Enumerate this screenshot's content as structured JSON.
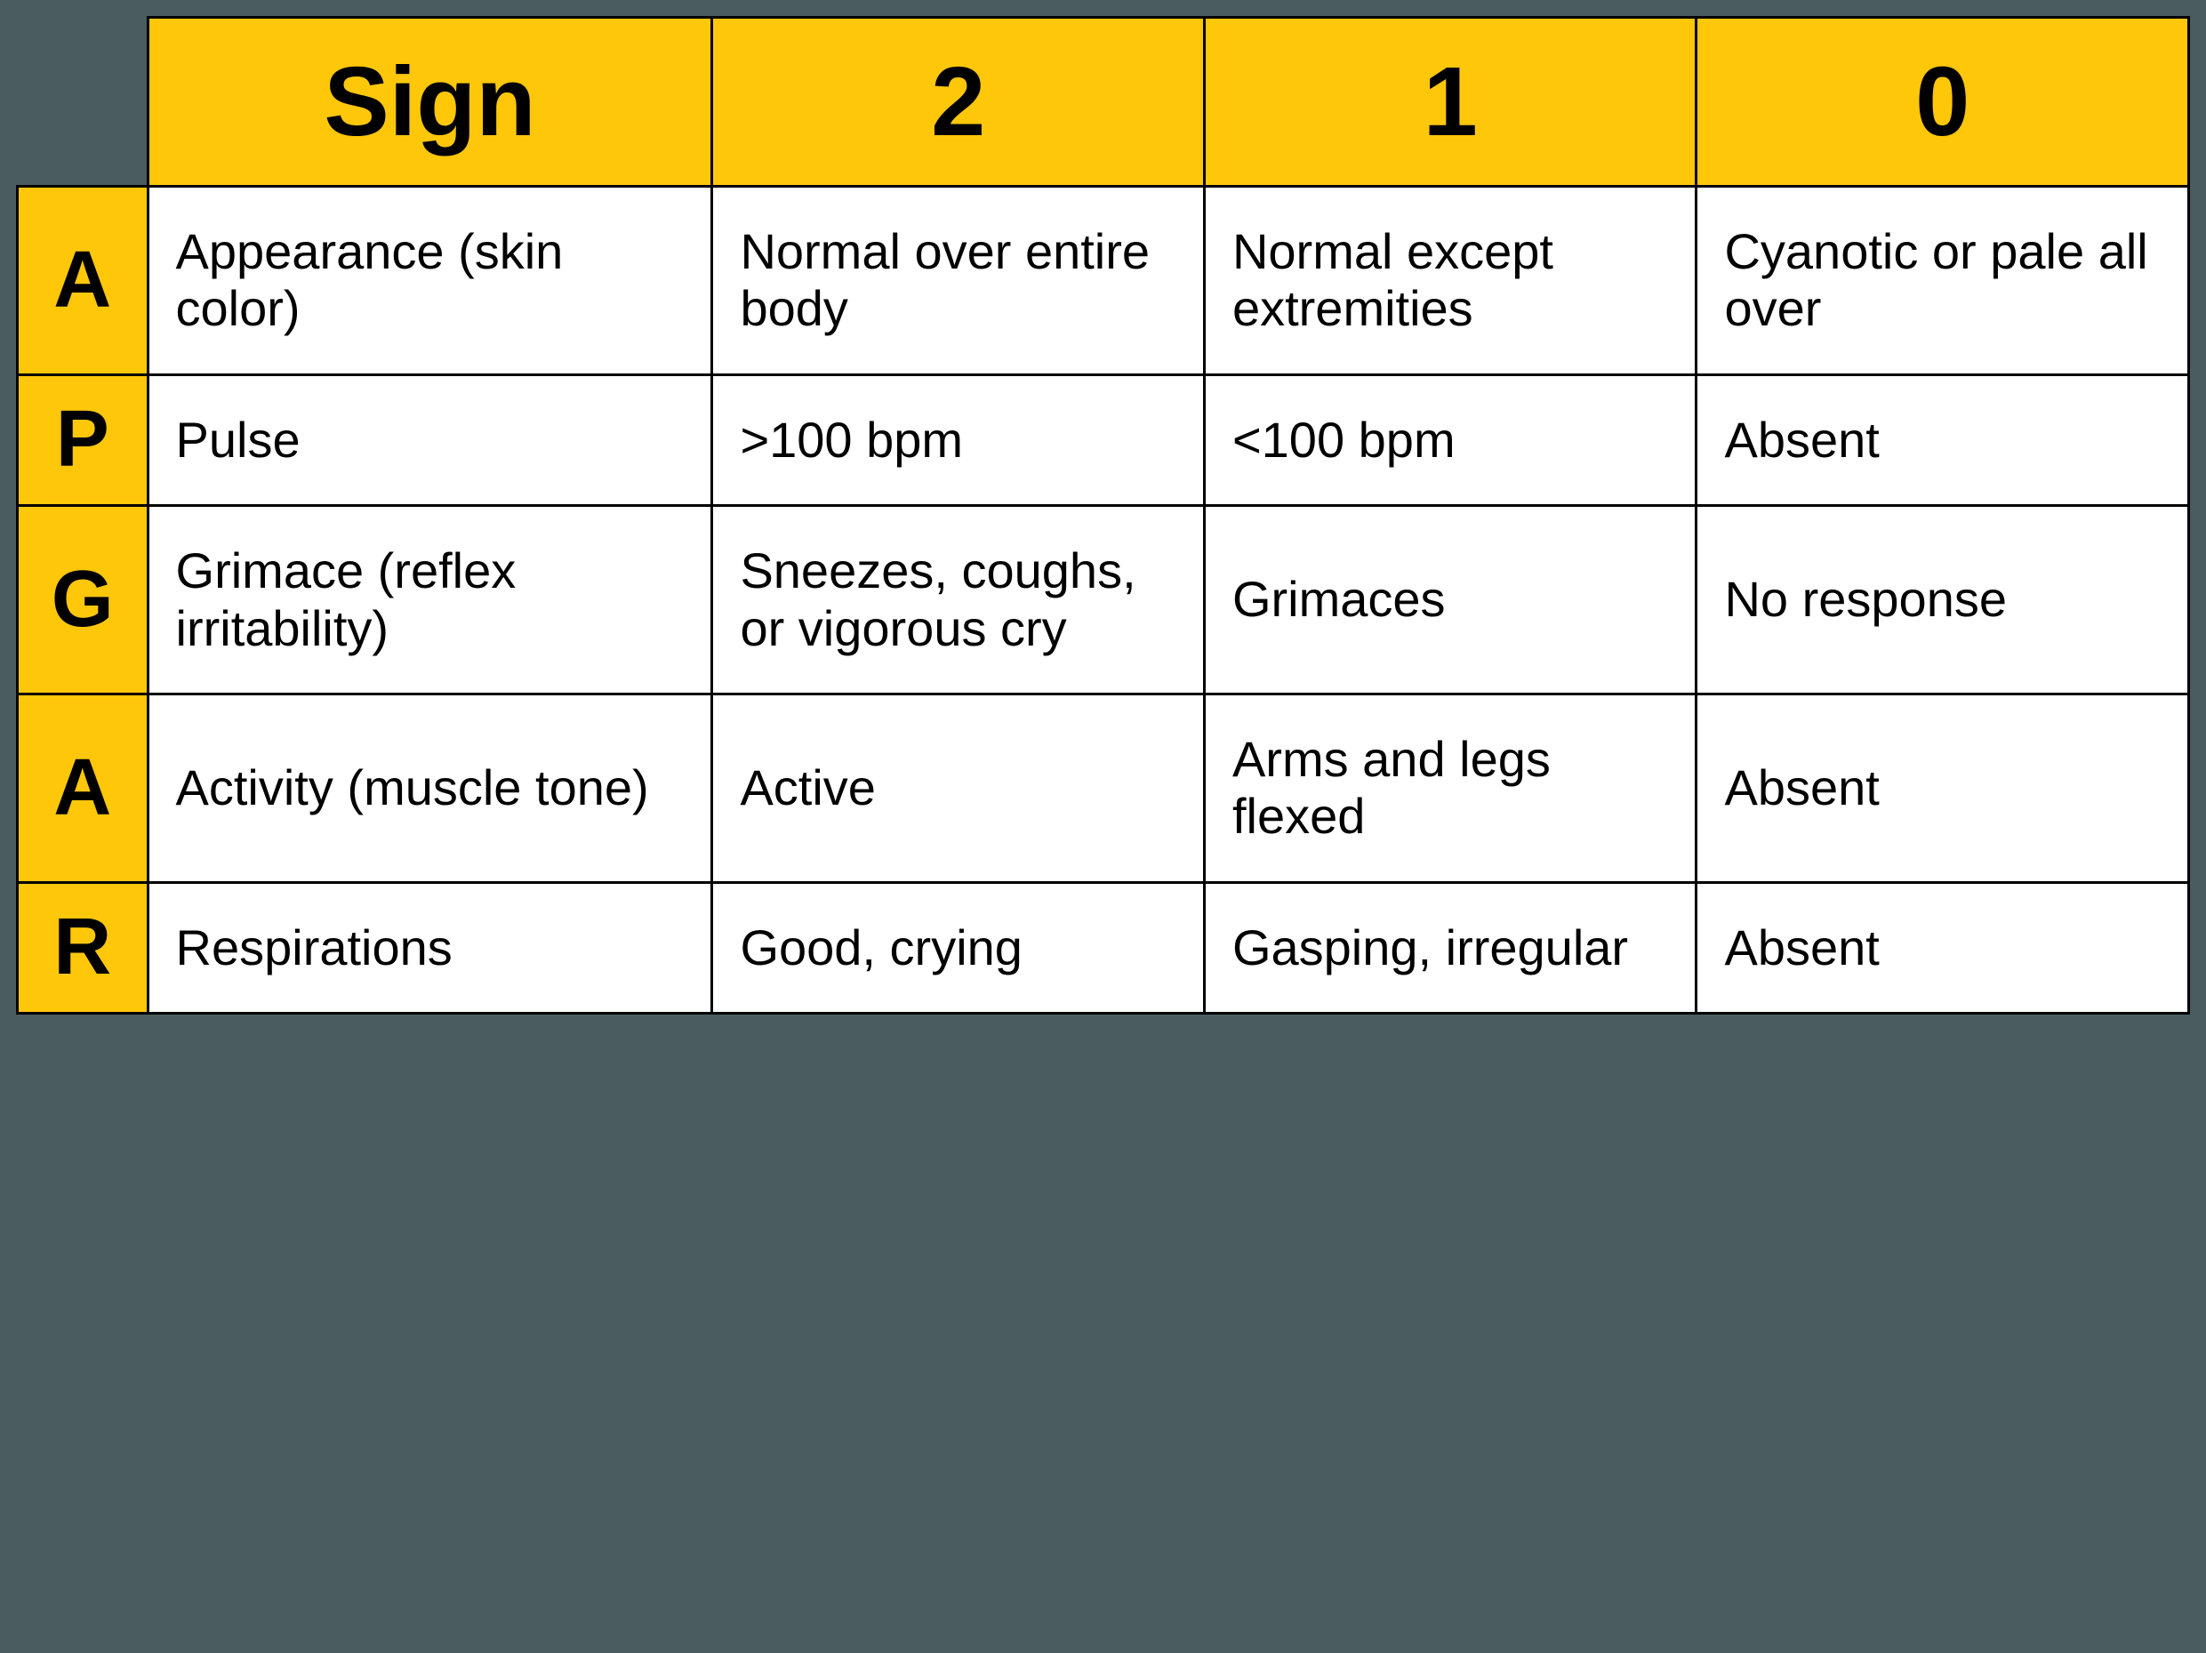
{
  "table": {
    "type": "table",
    "colors": {
      "background": "#4a5c5e",
      "header_bg": "#ffc709",
      "letter_bg": "#ffc709",
      "cell_bg": "#ffffff",
      "border": "#000000",
      "text": "#000000"
    },
    "typography": {
      "header_fontsize": 110,
      "header_weight": 700,
      "letter_fontsize": 90,
      "letter_weight": 700,
      "cell_fontsize": 56,
      "cell_weight": 400,
      "font_family": "Segoe UI, Helvetica Neue, Arial, sans-serif"
    },
    "border_width": 3,
    "columns": [
      "Sign",
      "2",
      "1",
      "0"
    ],
    "column_widths_pct": [
      6,
      26,
      22.666,
      22.666,
      22.666
    ],
    "rows": [
      {
        "letter": "A",
        "sign": "Appearance (skin color)",
        "score2": "Normal over entire body",
        "score1": "Normal except extremities",
        "score0": "Cyanotic or pale all over"
      },
      {
        "letter": "P",
        "sign": "Pulse",
        "score2": ">100 bpm",
        "score1": "<100 bpm",
        "score0": "Absent"
      },
      {
        "letter": "G",
        "sign": "Grimace (reflex irritability)",
        "score2": "Sneezes, coughs, or vigorous cry",
        "score1": "Grimaces",
        "score0": "No response"
      },
      {
        "letter": "A",
        "sign": "Activity (muscle tone)",
        "score2": "Active",
        "score1": "Arms and legs flexed",
        "score0": "Absent"
      },
      {
        "letter": "R",
        "sign": "Respirations",
        "score2": "Good, crying",
        "score1": "Gasping, irregular",
        "score0": "Absent"
      }
    ]
  }
}
